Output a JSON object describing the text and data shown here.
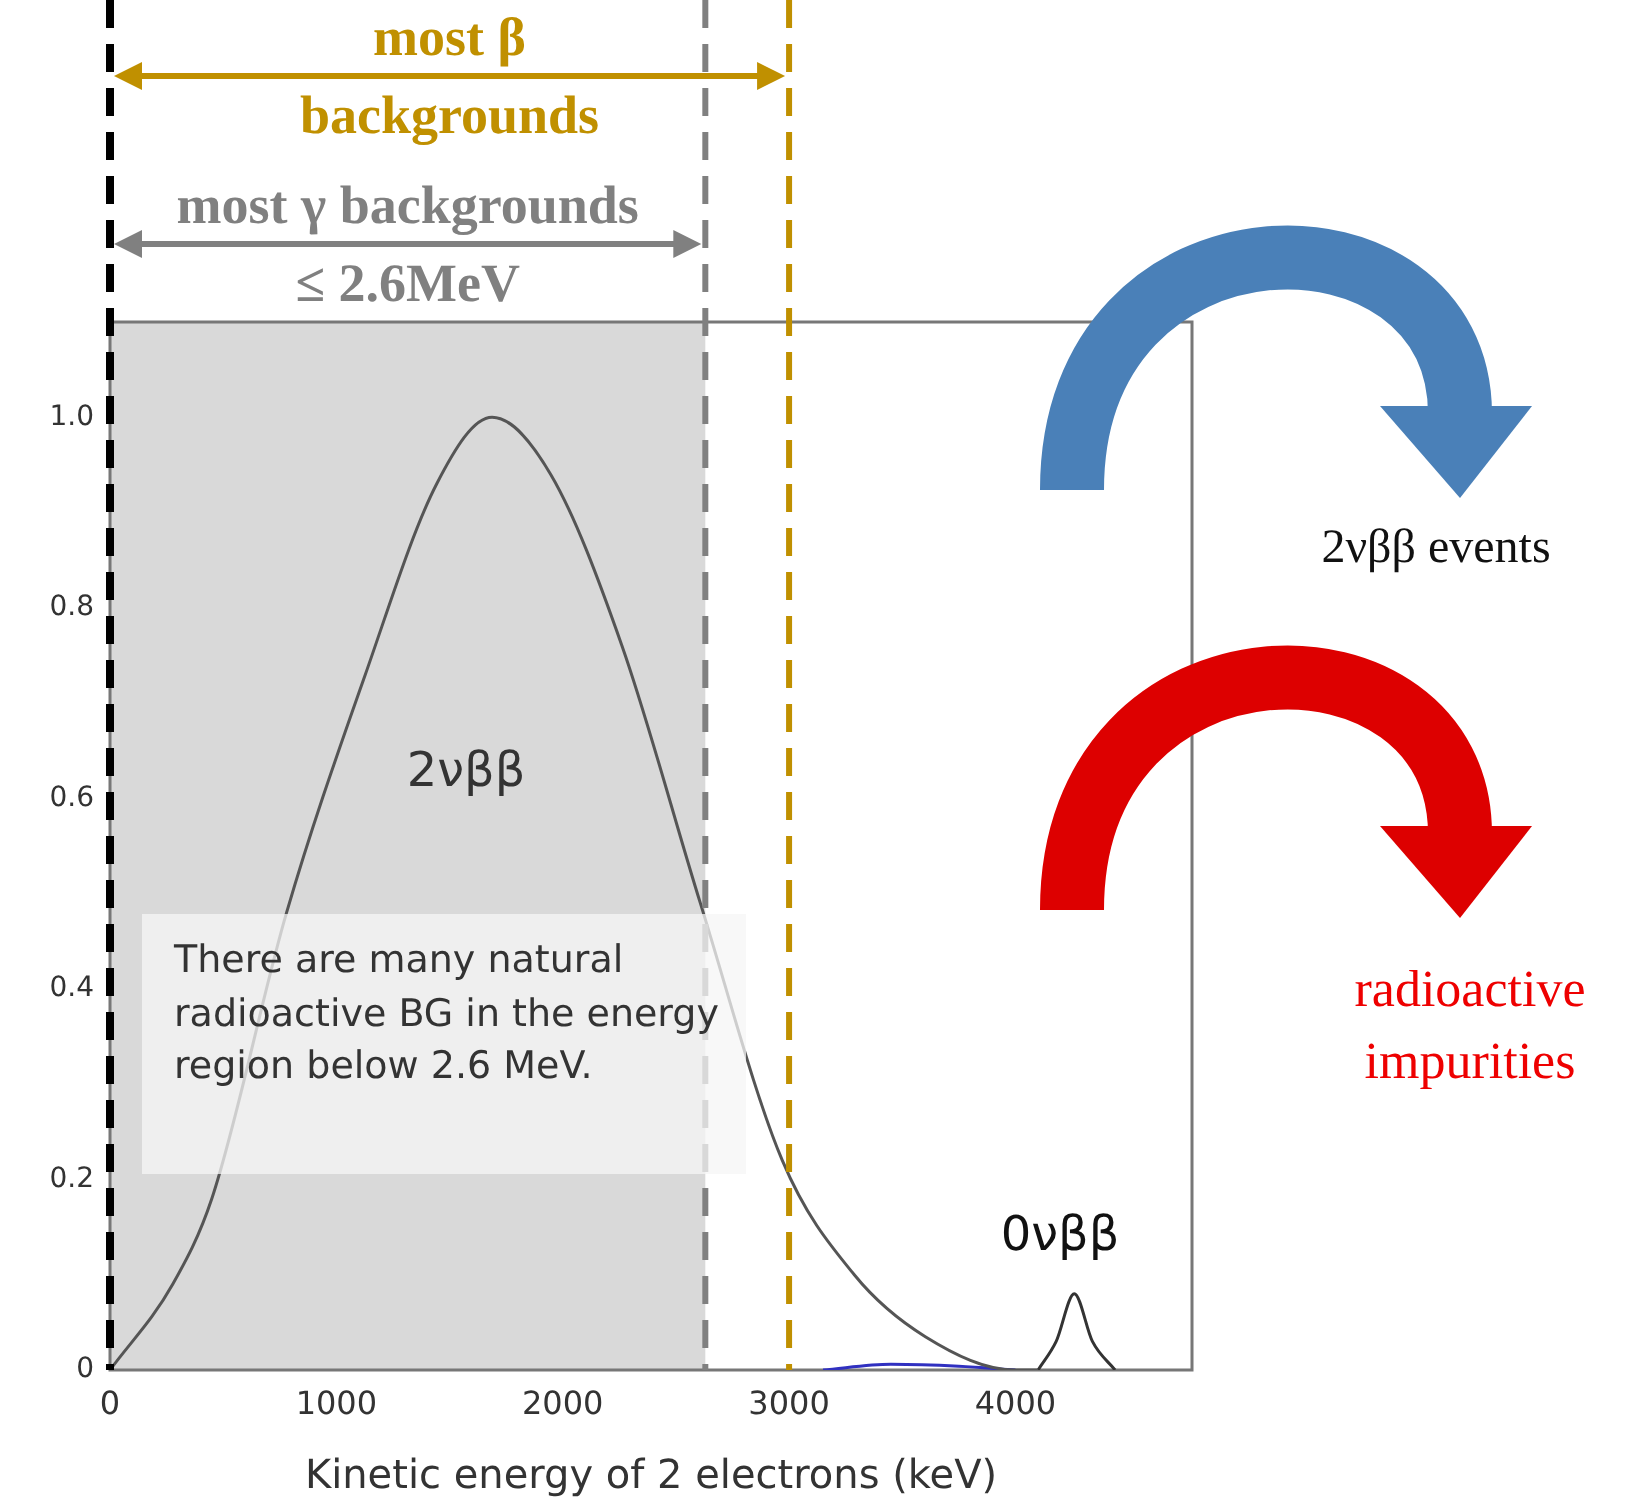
{
  "chart_data": {
    "type": "line",
    "xlabel": "Kinetic energy of 2 electrons (keV)",
    "xlim": [
      0,
      4780
    ],
    "ylim": [
      0,
      1.1
    ],
    "xticks": [
      0,
      1000,
      2000,
      3000,
      4000
    ],
    "yticks": [
      0,
      0.2,
      0.4,
      0.6,
      0.8,
      {
        "value": 1,
        "label": "1.0"
      }
    ],
    "series": [
      {
        "color": "#555555",
        "x": [
          0,
          277,
          450,
          780,
          1128,
          1443,
          1688,
          1947,
          2262,
          2608,
          2970,
          3288,
          3602,
          4000,
          4100
        ],
        "values": [
          0,
          0.09,
          0.18,
          0.48,
          0.73,
          0.93,
          1.0,
          0.94,
          0.76,
          0.49,
          0.22,
          0.1,
          0.035,
          0,
          0
        ]
      },
      {
        "color": "#333333",
        "x": [
          4100,
          4180,
          4260,
          4340,
          4440
        ],
        "values": [
          0,
          0.03,
          0.08,
          0.03,
          0
        ]
      },
      {
        "color": "#3030c0",
        "x": [
          3150,
          3450,
          3750,
          4000
        ],
        "values": [
          0,
          0.006,
          0.004,
          0
        ]
      }
    ],
    "bands": [
      {
        "axis": "x",
        "from": 0,
        "to": 2630,
        "color": "#d9d9d9"
      }
    ],
    "ref_lines": [
      {
        "axis": "x",
        "value": 0,
        "color": "#000000",
        "line_style": "dashed"
      },
      {
        "axis": "x",
        "value": 2630,
        "label": "most γ backgrounds\n≤ 2.6MeV",
        "color": "#808080",
        "line_style": "dashed"
      },
      {
        "axis": "x",
        "value": 3000,
        "label": "most β\nbackgrounds",
        "color": "#c09000",
        "line_style": "dashed"
      }
    ],
    "annotations": [
      "2νββ",
      "0νββ",
      "There are many natural radioactive BG in the energy region below 2.6 MeV.",
      "2νββ events",
      "radioactive impurities"
    ]
  }
}
